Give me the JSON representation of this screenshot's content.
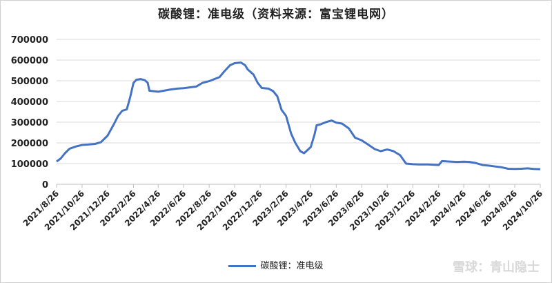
{
  "chart_data": {
    "type": "line",
    "title": "碳酸锂：准电级（资料来源：富宝锂电网）",
    "xlabel": "",
    "ylabel": "",
    "ylim": [
      0,
      700000
    ],
    "yticks": [
      "0",
      "100000",
      "200000",
      "300000",
      "400000",
      "500000",
      "600000",
      "700000"
    ],
    "x_range": [
      "2021/8/26",
      "2024/10/26"
    ],
    "xticks": [
      "2021/8/26",
      "2021/10/26",
      "2021/12/26",
      "2022/2/26",
      "2022/4/26",
      "2022/6/26",
      "2022/8/26",
      "2022/10/26",
      "2022/12/26",
      "2023/2/26",
      "2023/4/26",
      "2023/6/26",
      "2023/8/26",
      "2023/10/26",
      "2023/12/26",
      "2024/2/26",
      "2024/4/26",
      "2024/6/26",
      "2024/8/26",
      "2024/10/26"
    ],
    "grid": true,
    "legend": "bottom",
    "series": [
      {
        "name": "碳酸锂：准电级",
        "color": "#4472c4",
        "points": [
          [
            "2021/8/26",
            110000
          ],
          [
            "2021/9/5",
            125000
          ],
          [
            "2021/9/15",
            150000
          ],
          [
            "2021/9/26",
            172000
          ],
          [
            "2021/10/10",
            182000
          ],
          [
            "2021/10/26",
            190000
          ],
          [
            "2021/11/10",
            192000
          ],
          [
            "2021/11/26",
            195000
          ],
          [
            "2021/12/10",
            203000
          ],
          [
            "2021/12/26",
            235000
          ],
          [
            "2022/1/10",
            290000
          ],
          [
            "2022/1/20",
            330000
          ],
          [
            "2022/1/30",
            355000
          ],
          [
            "2022/2/10",
            362000
          ],
          [
            "2022/2/18",
            420000
          ],
          [
            "2022/2/26",
            490000
          ],
          [
            "2022/3/5",
            505000
          ],
          [
            "2022/3/15",
            508000
          ],
          [
            "2022/3/25",
            503000
          ],
          [
            "2022/4/1",
            490000
          ],
          [
            "2022/4/5",
            452000
          ],
          [
            "2022/4/26",
            447000
          ],
          [
            "2022/5/10",
            452000
          ],
          [
            "2022/5/26",
            458000
          ],
          [
            "2022/6/10",
            462000
          ],
          [
            "2022/6/26",
            464000
          ],
          [
            "2022/7/10",
            468000
          ],
          [
            "2022/7/26",
            472000
          ],
          [
            "2022/8/10",
            490000
          ],
          [
            "2022/8/26",
            498000
          ],
          [
            "2022/9/10",
            510000
          ],
          [
            "2022/9/20",
            518000
          ],
          [
            "2022/10/1",
            545000
          ],
          [
            "2022/10/15",
            575000
          ],
          [
            "2022/10/26",
            585000
          ],
          [
            "2022/11/10",
            588000
          ],
          [
            "2022/11/20",
            575000
          ],
          [
            "2022/11/26",
            555000
          ],
          [
            "2022/12/10",
            530000
          ],
          [
            "2022/12/20",
            490000
          ],
          [
            "2022/12/30",
            465000
          ],
          [
            "2023/1/15",
            462000
          ],
          [
            "2023/1/26",
            450000
          ],
          [
            "2023/2/5",
            425000
          ],
          [
            "2023/2/15",
            360000
          ],
          [
            "2023/2/26",
            330000
          ],
          [
            "2023/3/10",
            245000
          ],
          [
            "2023/3/20",
            200000
          ],
          [
            "2023/4/1",
            160000
          ],
          [
            "2023/4/10",
            150000
          ],
          [
            "2023/4/26",
            180000
          ],
          [
            "2023/5/5",
            240000
          ],
          [
            "2023/5/10",
            285000
          ],
          [
            "2023/5/20",
            290000
          ],
          [
            "2023/6/1",
            300000
          ],
          [
            "2023/6/15",
            308000
          ],
          [
            "2023/6/26",
            298000
          ],
          [
            "2023/7/10",
            293000
          ],
          [
            "2023/7/26",
            270000
          ],
          [
            "2023/8/10",
            225000
          ],
          [
            "2023/8/26",
            212000
          ],
          [
            "2023/9/10",
            192000
          ],
          [
            "2023/9/26",
            170000
          ],
          [
            "2023/10/10",
            160000
          ],
          [
            "2023/10/26",
            168000
          ],
          [
            "2023/11/10",
            160000
          ],
          [
            "2023/11/26",
            140000
          ],
          [
            "2023/12/10",
            100000
          ],
          [
            "2023/12/26",
            97000
          ],
          [
            "2024/1/10",
            96000
          ],
          [
            "2024/2/1",
            96000
          ],
          [
            "2024/2/26",
            93000
          ],
          [
            "2024/3/5",
            112000
          ],
          [
            "2024/3/20",
            110000
          ],
          [
            "2024/4/10",
            108000
          ],
          [
            "2024/4/26",
            109000
          ],
          [
            "2024/5/10",
            108000
          ],
          [
            "2024/5/26",
            102000
          ],
          [
            "2024/6/10",
            93000
          ],
          [
            "2024/6/26",
            90000
          ],
          [
            "2024/7/10",
            86000
          ],
          [
            "2024/7/26",
            82000
          ],
          [
            "2024/8/10",
            75000
          ],
          [
            "2024/8/26",
            74000
          ],
          [
            "2024/9/10",
            75000
          ],
          [
            "2024/9/26",
            77000
          ],
          [
            "2024/10/10",
            74000
          ],
          [
            "2024/10/26",
            73000
          ]
        ]
      }
    ]
  },
  "watermark": "雪球：青山隐士"
}
